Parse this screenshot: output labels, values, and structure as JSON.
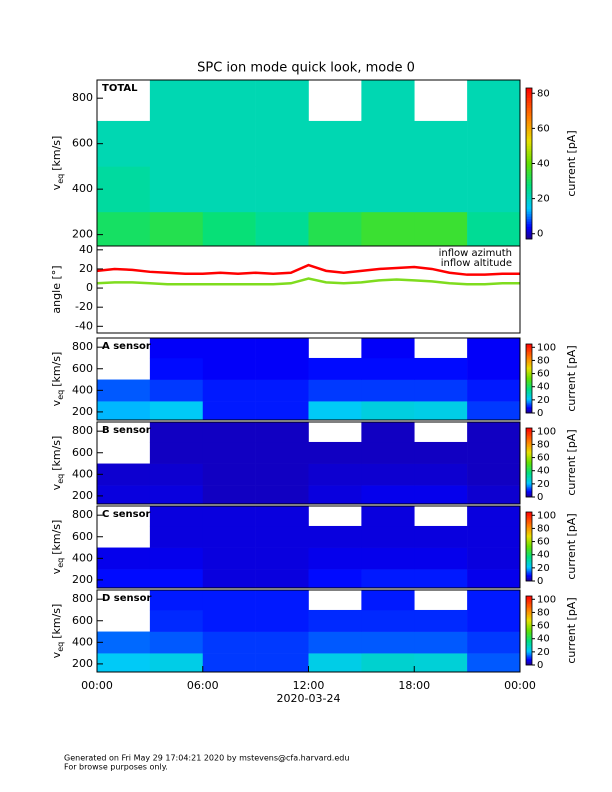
{
  "title": "SPC ion mode quick look, mode 0",
  "chart_data": [
    {
      "type": "heatmap",
      "label": "TOTAL",
      "ylabel": "v",
      "ylabel_sub": "eq",
      "ylabel_unit": "[km/s]",
      "xlim": [
        0,
        24
      ],
      "ylim": [
        150,
        880
      ],
      "yticks": [
        200,
        400,
        600,
        800
      ],
      "xbins": [
        0,
        3,
        6,
        9,
        12,
        15,
        18,
        21,
        24
      ],
      "ybins": [
        150,
        300,
        500,
        700,
        880
      ],
      "z": [
        [
          30,
          32,
          28,
          25,
          32,
          35,
          35,
          25
        ],
        [
          24,
          22,
          22,
          22,
          22,
          22,
          22,
          22
        ],
        [
          22,
          22,
          22,
          22,
          22,
          22,
          22,
          22
        ],
        [
          null,
          22,
          22,
          22,
          null,
          22,
          null,
          22
        ]
      ],
      "clim": [
        -3,
        83
      ],
      "cticks": [
        0,
        20,
        40,
        60,
        80
      ],
      "clabel": "current [pA]"
    },
    {
      "type": "line",
      "ylabel": "angle [°]",
      "xlim": [
        0,
        24
      ],
      "ylim": [
        -47,
        44
      ],
      "yticks": [
        -40,
        -20,
        0,
        20,
        40
      ],
      "x": [
        0,
        1,
        2,
        3,
        4,
        5,
        6,
        7,
        8,
        9,
        10,
        11,
        12,
        13,
        14,
        15,
        16,
        17,
        18,
        19,
        20,
        21,
        22,
        23,
        24
      ],
      "series": [
        {
          "name": "inflow azimuth",
          "color": "#ff0000",
          "values": [
            18,
            20,
            19,
            17,
            16,
            15,
            15,
            16,
            15,
            16,
            15,
            16,
            24,
            18,
            16,
            18,
            20,
            21,
            22,
            20,
            16,
            14,
            14,
            15,
            15
          ]
        },
        {
          "name": "inflow altitude",
          "color": "#7fdc1e",
          "values": [
            5,
            6,
            6,
            5,
            4,
            4,
            4,
            4,
            4,
            4,
            4,
            5,
            10,
            6,
            5,
            6,
            8,
            9,
            8,
            7,
            5,
            4,
            4,
            5,
            5
          ]
        }
      ]
    },
    {
      "type": "heatmap",
      "label": "A sensor",
      "ylabel": "v",
      "ylabel_sub": "eq",
      "ylabel_unit": "[km/s]",
      "xlim": [
        0,
        24
      ],
      "ylim": [
        125,
        885
      ],
      "yticks": [
        200,
        400,
        600,
        800
      ],
      "xbins": [
        0,
        3,
        6,
        9,
        12,
        15,
        18,
        21,
        24
      ],
      "ybins": [
        125,
        300,
        500,
        700,
        885
      ],
      "z": [
        [
          20,
          22,
          10,
          10,
          22,
          25,
          24,
          12
        ],
        [
          14,
          12,
          10,
          10,
          12,
          12,
          12,
          10
        ],
        [
          null,
          9,
          8,
          8,
          9,
          9,
          9,
          8
        ],
        [
          null,
          8,
          8,
          8,
          null,
          8,
          null,
          8
        ]
      ],
      "clim": [
        0,
        105
      ],
      "cticks": [
        0,
        20,
        40,
        60,
        80,
        100
      ],
      "clabel": "current [pA]"
    },
    {
      "type": "heatmap",
      "label": "B sensor",
      "ylabel": "v",
      "ylabel_sub": "eq",
      "ylabel_unit": "[km/s]",
      "xlim": [
        0,
        24
      ],
      "ylim": [
        125,
        885
      ],
      "yticks": [
        200,
        400,
        600,
        800
      ],
      "xbins": [
        0,
        3,
        6,
        9,
        12,
        15,
        18,
        21,
        24
      ],
      "ybins": [
        125,
        300,
        500,
        700,
        885
      ],
      "z": [
        [
          6,
          6,
          4,
          4,
          6,
          7,
          7,
          5
        ],
        [
          5,
          5,
          4,
          4,
          5,
          5,
          5,
          4
        ],
        [
          null,
          4,
          4,
          4,
          4,
          4,
          4,
          4
        ],
        [
          null,
          4,
          4,
          4,
          null,
          4,
          null,
          4
        ]
      ],
      "clim": [
        0,
        105
      ],
      "cticks": [
        0,
        20,
        40,
        60,
        80,
        100
      ],
      "clabel": "current [pA]"
    },
    {
      "type": "heatmap",
      "label": "C sensor",
      "ylabel": "v",
      "ylabel_sub": "eq",
      "ylabel_unit": "[km/s]",
      "xlim": [
        0,
        24
      ],
      "ylim": [
        125,
        885
      ],
      "yticks": [
        200,
        400,
        600,
        800
      ],
      "xbins": [
        0,
        3,
        6,
        9,
        12,
        15,
        18,
        21,
        24
      ],
      "ybins": [
        125,
        300,
        500,
        700,
        885
      ],
      "z": [
        [
          9,
          9,
          6,
          6,
          9,
          10,
          10,
          7
        ],
        [
          7,
          7,
          6,
          6,
          7,
          7,
          7,
          6
        ],
        [
          null,
          6,
          6,
          6,
          6,
          6,
          6,
          6
        ],
        [
          null,
          6,
          6,
          6,
          null,
          6,
          null,
          6
        ]
      ],
      "clim": [
        0,
        105
      ],
      "cticks": [
        0,
        20,
        40,
        60,
        80,
        100
      ],
      "clabel": "current [pA]"
    },
    {
      "type": "heatmap",
      "label": "D sensor",
      "ylabel": "v",
      "ylabel_sub": "eq",
      "ylabel_unit": "[km/s]",
      "xlim": [
        0,
        24
      ],
      "ylim": [
        125,
        885
      ],
      "yticks": [
        200,
        400,
        600,
        800
      ],
      "xticks": [
        {
          "value": 0,
          "label": "00:00"
        },
        {
          "value": 6,
          "label": "06:00"
        },
        {
          "value": 12,
          "label": "12:00"
        },
        {
          "value": 18,
          "label": "18:00"
        },
        {
          "value": 24,
          "label": "00:00"
        }
      ],
      "xlabel": "2020-03-24",
      "xbins": [
        0,
        3,
        6,
        9,
        12,
        15,
        18,
        21,
        24
      ],
      "ybins": [
        125,
        300,
        500,
        700,
        885
      ],
      "z": [
        [
          22,
          24,
          12,
          12,
          24,
          27,
          26,
          14
        ],
        [
          15,
          14,
          12,
          12,
          14,
          14,
          14,
          12
        ],
        [
          null,
          11,
          10,
          10,
          11,
          11,
          11,
          10
        ],
        [
          null,
          10,
          10,
          10,
          null,
          10,
          null,
          10
        ]
      ],
      "clim": [
        0,
        105
      ],
      "cticks": [
        0,
        20,
        40,
        60,
        80,
        100
      ],
      "clabel": "current [pA]"
    }
  ],
  "footer": [
    "Generated on Fri May 29 17:04:21 2020 by mstevens@cfa.harvard.edu",
    "For browse purposes only."
  ]
}
